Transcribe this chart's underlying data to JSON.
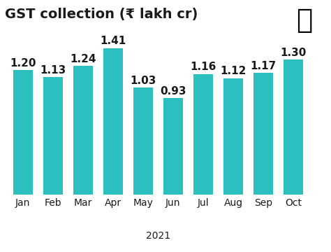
{
  "title": "GST collection (₹ lakh cr)",
  "categories": [
    "Jan",
    "Feb",
    "Mar",
    "Apr",
    "May",
    "Jun",
    "Jul",
    "Aug",
    "Sep",
    "Oct"
  ],
  "values": [
    1.2,
    1.13,
    1.24,
    1.41,
    1.03,
    0.93,
    1.16,
    1.12,
    1.17,
    1.3
  ],
  "bar_color": "#2bbfbf",
  "label_color": "#1a1a1a",
  "background_color": "#ffffff",
  "xlabel": "2021",
  "ylim": [
    0,
    1.6
  ],
  "title_fontsize": 14,
  "label_fontsize": 11,
  "tick_fontsize": 10,
  "xlabel_fontsize": 10,
  "bar_width": 0.65
}
